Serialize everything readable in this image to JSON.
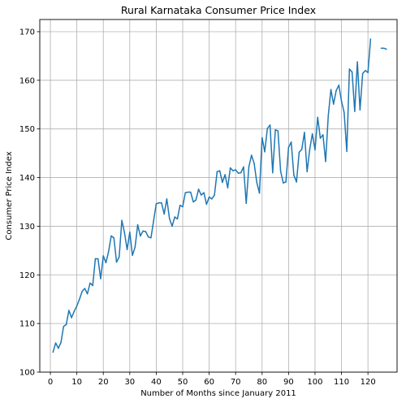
{
  "chart_data": {
    "type": "line",
    "title": "Rural Karnataka Consumer Price Index",
    "xlabel": "Number of Months since January 2011",
    "ylabel": "Consumer Price Index",
    "xlim": [
      -4,
      131
    ],
    "ylim": [
      100,
      172.5
    ],
    "xticks": [
      0,
      10,
      20,
      30,
      40,
      50,
      60,
      70,
      80,
      90,
      100,
      110,
      120
    ],
    "yticks": [
      100,
      110,
      120,
      130,
      140,
      150,
      160,
      170
    ],
    "grid": true,
    "line_color": "#1f77b4",
    "series": [
      {
        "segments": [
          {
            "x_start": 1,
            "values": [
              104.1,
              106.0,
              104.9,
              106.1,
              109.4,
              109.8,
              112.7,
              111.2,
              112.5,
              113.6,
              115.0,
              116.6,
              117.2,
              116.1,
              118.3,
              117.8,
              123.3,
              123.3,
              119.2,
              123.9,
              122.5,
              124.8,
              128.0,
              127.6,
              122.6,
              123.7,
              131.2,
              128.7,
              125.2,
              128.8,
              124.0,
              125.7,
              130.3,
              128.0,
              129.0,
              128.9,
              127.8,
              127.6,
              131.1,
              134.6,
              134.8,
              134.8,
              132.5,
              135.6,
              131.6,
              130.0,
              131.9,
              131.5,
              134.3,
              134.0,
              136.9,
              137.0,
              137.0,
              135.0,
              135.4,
              137.6,
              136.4,
              136.9,
              134.5,
              136.0,
              135.6,
              136.4,
              141.2,
              141.4,
              139.0,
              140.6,
              137.9,
              142.0,
              141.4,
              141.6,
              140.9,
              141.0,
              142.2,
              134.7,
              142.2,
              144.6,
              142.9,
              139.0,
              136.8,
              148.2,
              145.3,
              150.1,
              150.8,
              141.0,
              149.8,
              149.6,
              141.3,
              138.9,
              139.1,
              146.2,
              147.3,
              140.5,
              139.1,
              145.2,
              145.8,
              149.3,
              141.2,
              145.8,
              149.0,
              145.7,
              152.4,
              148.1,
              148.8,
              143.3,
              152.7,
              158.1,
              155.1,
              157.9,
              159.0,
              155.7,
              153.4,
              145.4,
              162.3,
              161.7,
              153.6,
              163.8,
              153.9,
              161.4,
              162.0,
              161.6,
              168.5
            ]
          },
          {
            "x_start": 125,
            "values": [
              166.6,
              166.6,
              166.4
            ]
          }
        ]
      }
    ]
  }
}
